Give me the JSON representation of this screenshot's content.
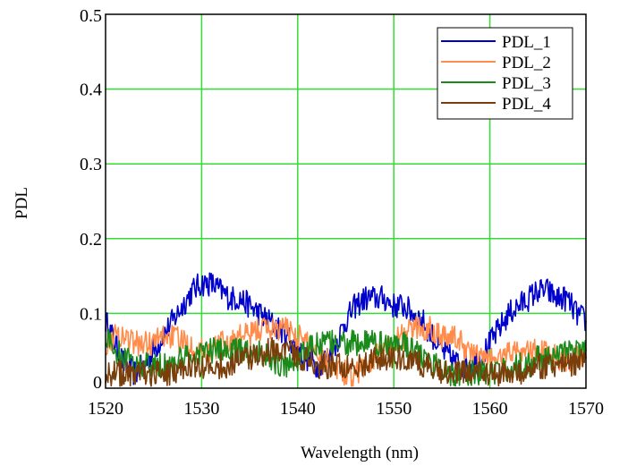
{
  "chart_data": {
    "type": "line",
    "xlabel": "Wavelength (nm)",
    "ylabel": "PDL",
    "xlim": [
      1520,
      1570
    ],
    "ylim": [
      0,
      0.5
    ],
    "x_ticks": [
      "1520",
      "1530",
      "1540",
      "1550",
      "1560",
      "1570"
    ],
    "y_ticks": [
      "0",
      "0.1",
      "0.2",
      "0.3",
      "0.4",
      "0.5"
    ],
    "grid": true,
    "grid_color": "#33dd33",
    "legend_position": "top-right",
    "series": [
      {
        "name": "PDL_1",
        "color": "#0000cc",
        "x": [
          1520,
          1521,
          1522,
          1523,
          1524,
          1525,
          1526,
          1527,
          1528,
          1529,
          1530,
          1531,
          1532,
          1533,
          1534,
          1535,
          1536,
          1537,
          1538,
          1539,
          1540,
          1541,
          1542,
          1543,
          1544,
          1545,
          1546,
          1547,
          1548,
          1549,
          1550,
          1551,
          1552,
          1553,
          1554,
          1555,
          1556,
          1557,
          1558,
          1559,
          1560,
          1561,
          1562,
          1563,
          1564,
          1565,
          1566,
          1567,
          1568,
          1569,
          1570
        ],
        "y": [
          0.09,
          0.06,
          0.03,
          0.02,
          0.03,
          0.05,
          0.07,
          0.09,
          0.11,
          0.13,
          0.14,
          0.14,
          0.13,
          0.12,
          0.12,
          0.11,
          0.1,
          0.09,
          0.08,
          0.07,
          0.05,
          0.04,
          0.03,
          0.04,
          0.06,
          0.09,
          0.11,
          0.12,
          0.12,
          0.12,
          0.11,
          0.11,
          0.1,
          0.09,
          0.07,
          0.05,
          0.04,
          0.03,
          0.03,
          0.04,
          0.06,
          0.08,
          0.1,
          0.11,
          0.12,
          0.13,
          0.13,
          0.12,
          0.12,
          0.1,
          0.09
        ]
      },
      {
        "name": "PDL_2",
        "color": "#ff8c4a",
        "x": [
          1520,
          1521,
          1522,
          1523,
          1524,
          1525,
          1526,
          1527,
          1528,
          1529,
          1530,
          1531,
          1532,
          1533,
          1534,
          1535,
          1536,
          1537,
          1538,
          1539,
          1540,
          1541,
          1542,
          1543,
          1544,
          1545,
          1546,
          1547,
          1548,
          1549,
          1550,
          1551,
          1552,
          1553,
          1554,
          1555,
          1556,
          1557,
          1558,
          1559,
          1560,
          1561,
          1562,
          1563,
          1564,
          1565,
          1566,
          1567,
          1568,
          1569,
          1570
        ],
        "y": [
          0.06,
          0.07,
          0.07,
          0.06,
          0.06,
          0.06,
          0.07,
          0.07,
          0.06,
          0.06,
          0.05,
          0.05,
          0.06,
          0.06,
          0.07,
          0.07,
          0.08,
          0.08,
          0.08,
          0.08,
          0.07,
          0.06,
          0.05,
          0.04,
          0.03,
          0.02,
          0.02,
          0.03,
          0.04,
          0.05,
          0.06,
          0.07,
          0.08,
          0.08,
          0.08,
          0.07,
          0.07,
          0.06,
          0.05,
          0.04,
          0.04,
          0.04,
          0.05,
          0.05,
          0.05,
          0.05,
          0.05,
          0.04,
          0.04,
          0.04,
          0.04
        ]
      },
      {
        "name": "PDL_3",
        "color": "#1a8a1a",
        "x": [
          1520,
          1521,
          1522,
          1523,
          1524,
          1525,
          1526,
          1527,
          1528,
          1529,
          1530,
          1531,
          1532,
          1533,
          1534,
          1535,
          1536,
          1537,
          1538,
          1539,
          1540,
          1541,
          1542,
          1543,
          1544,
          1545,
          1546,
          1547,
          1548,
          1549,
          1550,
          1551,
          1552,
          1553,
          1554,
          1555,
          1556,
          1557,
          1558,
          1559,
          1560,
          1561,
          1562,
          1563,
          1564,
          1565,
          1566,
          1567,
          1568,
          1569,
          1570
        ],
        "y": [
          0.07,
          0.05,
          0.04,
          0.03,
          0.03,
          0.03,
          0.03,
          0.03,
          0.04,
          0.04,
          0.05,
          0.05,
          0.05,
          0.05,
          0.05,
          0.05,
          0.05,
          0.04,
          0.03,
          0.03,
          0.04,
          0.05,
          0.06,
          0.06,
          0.06,
          0.06,
          0.06,
          0.06,
          0.06,
          0.06,
          0.06,
          0.06,
          0.05,
          0.04,
          0.03,
          0.03,
          0.02,
          0.02,
          0.02,
          0.02,
          0.02,
          0.02,
          0.03,
          0.03,
          0.03,
          0.04,
          0.04,
          0.04,
          0.05,
          0.05,
          0.05
        ]
      },
      {
        "name": "PDL_4",
        "color": "#7a3e0a",
        "x": [
          1520,
          1521,
          1522,
          1523,
          1524,
          1525,
          1526,
          1527,
          1528,
          1529,
          1530,
          1531,
          1532,
          1533,
          1534,
          1535,
          1536,
          1537,
          1538,
          1539,
          1540,
          1541,
          1542,
          1543,
          1544,
          1545,
          1546,
          1547,
          1548,
          1549,
          1550,
          1551,
          1552,
          1553,
          1554,
          1555,
          1556,
          1557,
          1558,
          1559,
          1560,
          1561,
          1562,
          1563,
          1564,
          1565,
          1566,
          1567,
          1568,
          1569,
          1570
        ],
        "y": [
          0.02,
          0.02,
          0.02,
          0.02,
          0.02,
          0.02,
          0.02,
          0.02,
          0.03,
          0.03,
          0.03,
          0.03,
          0.03,
          0.03,
          0.04,
          0.04,
          0.04,
          0.05,
          0.05,
          0.05,
          0.04,
          0.04,
          0.03,
          0.03,
          0.03,
          0.03,
          0.03,
          0.03,
          0.04,
          0.04,
          0.04,
          0.04,
          0.04,
          0.03,
          0.03,
          0.02,
          0.02,
          0.02,
          0.02,
          0.02,
          0.02,
          0.02,
          0.02,
          0.02,
          0.03,
          0.03,
          0.03,
          0.03,
          0.03,
          0.03,
          0.04
        ]
      }
    ]
  }
}
